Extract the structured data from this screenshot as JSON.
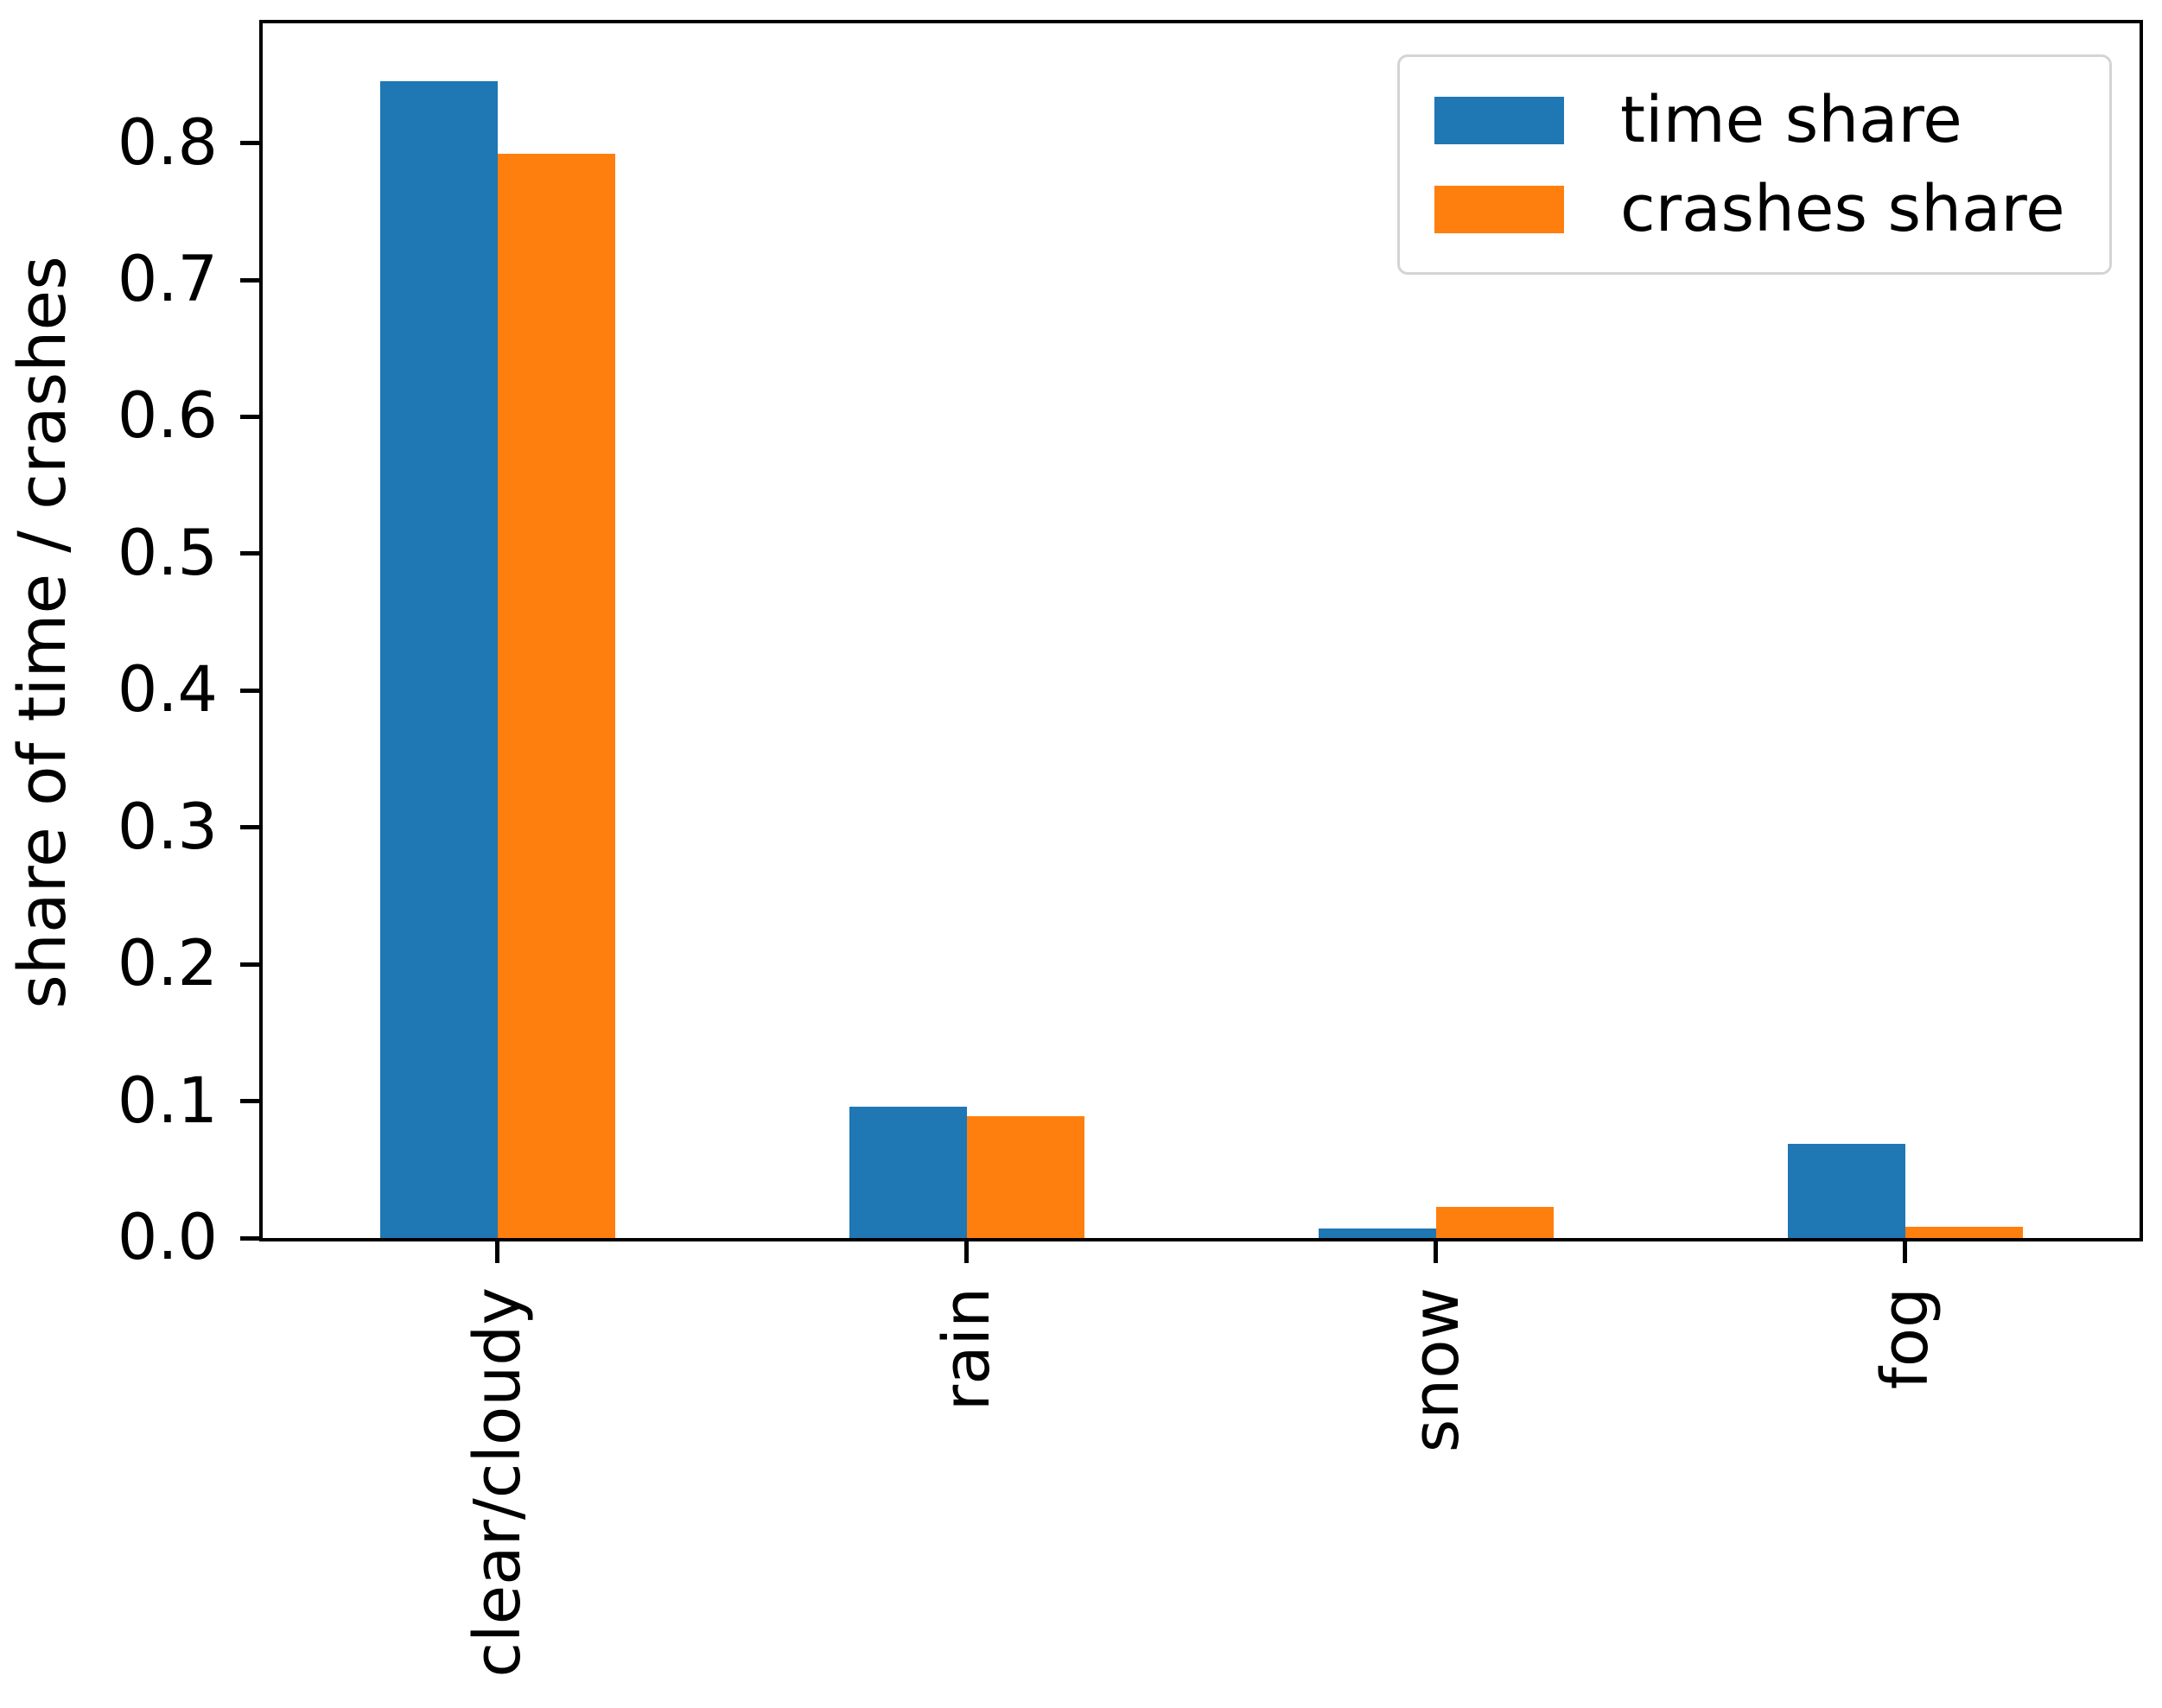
{
  "chart_data": {
    "type": "bar",
    "title": "",
    "xlabel": "",
    "ylabel": "share of time / crashes",
    "categories": [
      "clear/cloudy",
      "rain",
      "snow",
      "fog"
    ],
    "series": [
      {
        "name": "time share",
        "color": "#1f77b4",
        "values": [
          0.845,
          0.096,
          0.007,
          0.069
        ]
      },
      {
        "name": "crashes share",
        "color": "#ff7f0e",
        "values": [
          0.792,
          0.089,
          0.023,
          0.008
        ]
      }
    ],
    "ylim": [
      0,
      0.8875
    ],
    "yticks": [
      0.0,
      0.1,
      0.2,
      0.3,
      0.4,
      0.5,
      0.6,
      0.7,
      0.8
    ],
    "ytick_labels": [
      "0.0",
      "0.1",
      "0.2",
      "0.3",
      "0.4",
      "0.5",
      "0.6",
      "0.7",
      "0.8"
    ],
    "xtick_rotation": 90,
    "grid": false,
    "legend_position": "upper right",
    "bar_width_fraction": 0.25,
    "axis_color": "#000000"
  }
}
